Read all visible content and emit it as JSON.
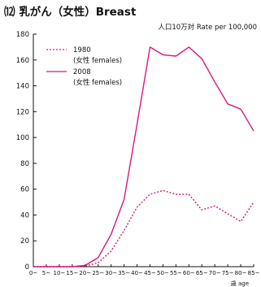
{
  "chart_data": {
    "type": "line",
    "title": "⑿  乳がん（女性）Breast",
    "rate_label": "人口10万対  Rate per 100,000",
    "xunit": "歳 age",
    "ylim": [
      0,
      180
    ],
    "yticks": [
      0,
      20,
      40,
      60,
      80,
      100,
      120,
      140,
      160,
      180
    ],
    "categories": [
      "0~",
      "5~",
      "10~",
      "15~",
      "20~",
      "25~",
      "30~",
      "35~",
      "40~",
      "45~",
      "50~",
      "55~",
      "60~",
      "65~",
      "70~",
      "75~",
      "80~",
      "85~"
    ],
    "series": [
      {
        "name": "1980",
        "sublabel": "(女性 females)",
        "color": "#d6197e",
        "dashed": true,
        "values": [
          0,
          0,
          0,
          0,
          0.5,
          3,
          12,
          28,
          46,
          56,
          59,
          56,
          56,
          44,
          47,
          41,
          35,
          50
        ]
      },
      {
        "name": "2008",
        "sublabel": "(女性 females)",
        "color": "#d6197e",
        "dashed": false,
        "values": [
          0,
          0,
          0,
          0,
          1,
          7,
          25,
          52,
          110,
          170,
          164,
          163,
          170,
          161,
          143,
          126,
          122,
          105
        ]
      }
    ],
    "grid": false,
    "legend_position": "top-left"
  }
}
